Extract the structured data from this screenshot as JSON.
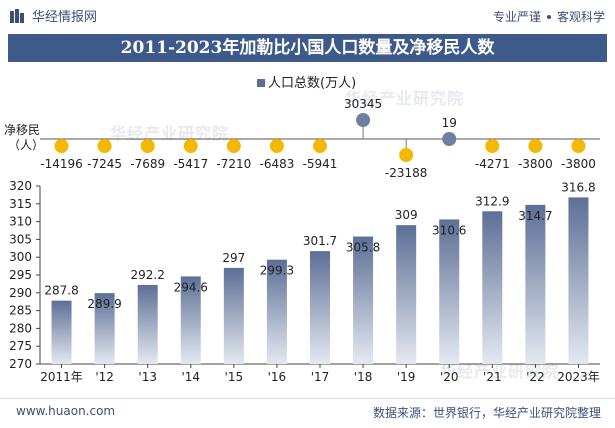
{
  "header": {
    "brand": "华经情报网",
    "slogan_left": "专业严谨",
    "slogan_right": "客观科学"
  },
  "title": "2011-2023年加勒比小国人口数量及净移民人数",
  "legend_label": "人口总数(万人)",
  "migration_label": "净移民\n（人）",
  "footer": {
    "url": "www.huaon.com",
    "source": "数据来源：世界银行，华经产业研究院整理"
  },
  "watermark": "华经产业研究院",
  "colors": {
    "title_bg": "#3e5a8a",
    "bar_top": "#5d6f96",
    "bar_bottom": "#e4e8f0",
    "dot_negative": "#f5b800",
    "dot_positive": "#6e7fa3",
    "axis": "#444444"
  },
  "chart_data": {
    "type": "bar",
    "categories": [
      "2011年",
      "'12",
      "'13",
      "'14",
      "'15",
      "'16",
      "'17",
      "'18",
      "'19",
      "'20",
      "'21",
      "'22",
      "2023年"
    ],
    "series": [
      {
        "name": "人口总数(万人)",
        "values": [
          287.8,
          289.9,
          292.2,
          294.6,
          297,
          299.3,
          301.7,
          305.8,
          309,
          310.6,
          312.9,
          314.7,
          316.8
        ]
      }
    ],
    "labels": [
      "287.8",
      "289.9",
      "292.2",
      "294.6",
      "297",
      "299.3",
      "301.7",
      "305.8",
      "309",
      "310.6",
      "312.9",
      "314.7",
      "316.8"
    ],
    "migration": [
      -14196,
      -7245,
      -7689,
      -5417,
      -7210,
      -6483,
      -5941,
      30345,
      -23188,
      19,
      -4271,
      -3800,
      -3800
    ],
    "ylim": [
      270,
      320
    ],
    "yticks": [
      270,
      275,
      280,
      285,
      290,
      295,
      300,
      305,
      310,
      315,
      320
    ]
  }
}
